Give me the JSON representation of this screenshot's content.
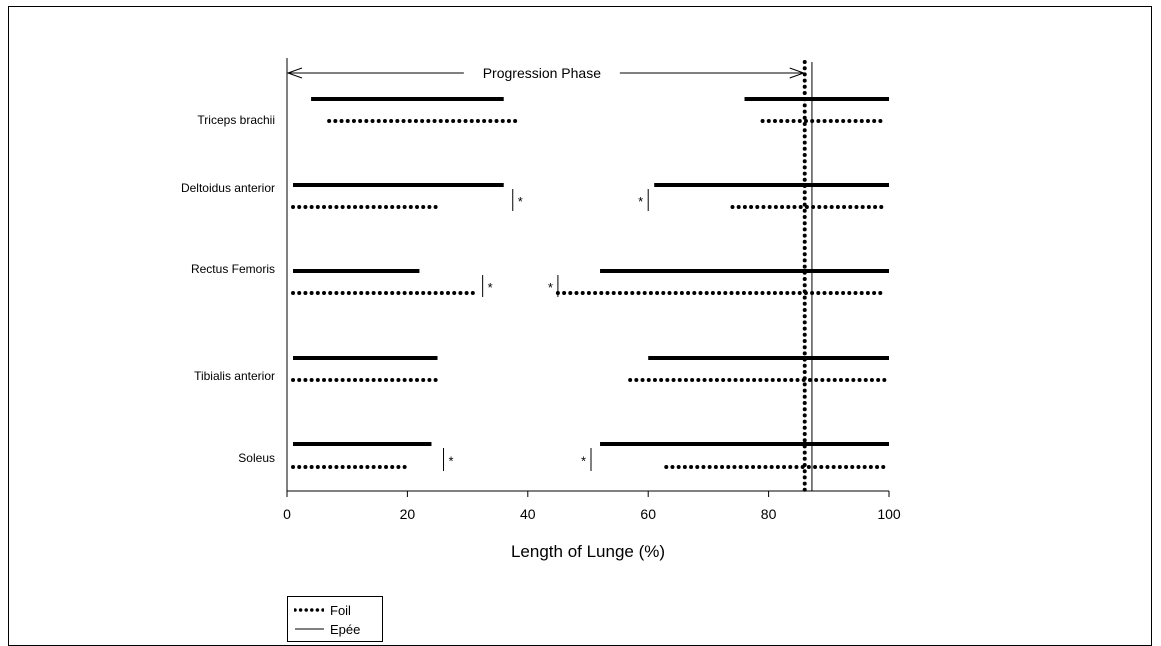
{
  "chart_data": {
    "type": "interval",
    "xlabel": "Length of Lunge (%)",
    "ylabel": "",
    "xlim": [
      0,
      100
    ],
    "xticks": [
      0,
      20,
      40,
      60,
      80,
      100
    ],
    "annotation": {
      "text": "Progression Phase",
      "x_start": 0,
      "x_end": 86
    },
    "phase_lines": {
      "Foil": 86,
      "Epée": 87.2
    },
    "legend": {
      "position": "bottom-left",
      "entries": [
        {
          "name": "Foil",
          "style": "dotted"
        },
        {
          "name": "Epée",
          "style": "solid"
        }
      ]
    },
    "muscles": [
      {
        "name": "Triceps brachii",
        "Epée": [
          [
            4,
            36
          ],
          [
            76,
            100
          ]
        ],
        "Foil": [
          [
            7,
            38
          ],
          [
            79,
            99
          ]
        ],
        "significance": []
      },
      {
        "name": "Deltoidus anterior",
        "Epée": [
          [
            1,
            36
          ],
          [
            61,
            100
          ]
        ],
        "Foil": [
          [
            1,
            25
          ],
          [
            74,
            99
          ]
        ],
        "significance": [
          {
            "x": 37.5,
            "text": "*",
            "side": "right"
          },
          {
            "x": 60,
            "text": "*",
            "side": "left"
          }
        ]
      },
      {
        "name": "Rectus Femoris",
        "Epée": [
          [
            1,
            22
          ],
          [
            52,
            100
          ]
        ],
        "Foil": [
          [
            1,
            31
          ],
          [
            45,
            99.5
          ]
        ],
        "significance": [
          {
            "x": 32.5,
            "text": "*",
            "side": "right"
          },
          {
            "x": 45,
            "text": "*",
            "side": "left"
          }
        ]
      },
      {
        "name": "Tibialis anterior",
        "Epée": [
          [
            1,
            25
          ],
          [
            60,
            100
          ]
        ],
        "Foil": [
          [
            1,
            25
          ],
          [
            57,
            100
          ]
        ],
        "significance": []
      },
      {
        "name": "Soleus",
        "Epée": [
          [
            1,
            24
          ],
          [
            52,
            100
          ]
        ],
        "Foil": [
          [
            1,
            20
          ],
          [
            63,
            100
          ]
        ],
        "significance": [
          {
            "x": 26,
            "text": "*",
            "side": "right"
          },
          {
            "x": 50.5,
            "text": "*",
            "side": "left"
          }
        ]
      }
    ]
  }
}
